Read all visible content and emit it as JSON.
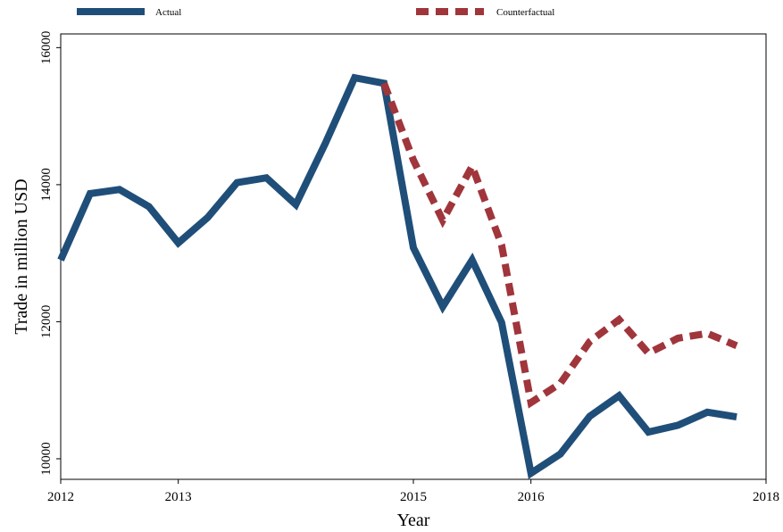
{
  "chart_data": {
    "type": "line",
    "title": "",
    "xlabel": "Year",
    "ylabel": "Trade in million USD",
    "xlim": [
      2012,
      2018
    ],
    "ylim": [
      9700,
      16200
    ],
    "x_ticks": [
      2012,
      2013,
      2015,
      2016,
      2018
    ],
    "x_tick_labels": [
      "2012",
      "2013",
      "2015",
      "2016",
      "2018"
    ],
    "y_ticks": [
      10000,
      12000,
      14000,
      16000
    ],
    "y_tick_labels": [
      "10000",
      "12000",
      "14000",
      "16000"
    ],
    "grid": false,
    "legend": "top",
    "series": [
      {
        "name": "Actual",
        "color": "#1f4e79",
        "style": "solid",
        "x": [
          2012.0,
          2012.25,
          2012.5,
          2012.75,
          2013.0,
          2013.25,
          2013.5,
          2013.75,
          2014.0,
          2014.25,
          2014.5,
          2014.75,
          2015.0,
          2015.25,
          2015.5,
          2015.75,
          2016.0,
          2016.25,
          2016.5,
          2016.75,
          2017.0,
          2017.25,
          2017.5,
          2017.75
        ],
        "y": [
          12900,
          13870,
          13930,
          13680,
          13150,
          13520,
          14030,
          14100,
          13710,
          14600,
          15560,
          15480,
          13080,
          12220,
          12900,
          11990,
          9790,
          10070,
          10620,
          10920,
          10390,
          10490,
          10680,
          10610
        ]
      },
      {
        "name": "Counterfactual",
        "color": "#a0353b",
        "style": "dashed",
        "x": [
          2014.75,
          2015.0,
          2015.25,
          2015.5,
          2015.75,
          2016.0,
          2016.25,
          2016.5,
          2016.75,
          2017.0,
          2017.25,
          2017.5,
          2017.75
        ],
        "y": [
          15480,
          14360,
          13480,
          14270,
          13120,
          10820,
          11100,
          11710,
          12030,
          11540,
          11760,
          11830,
          11650
        ]
      }
    ]
  }
}
